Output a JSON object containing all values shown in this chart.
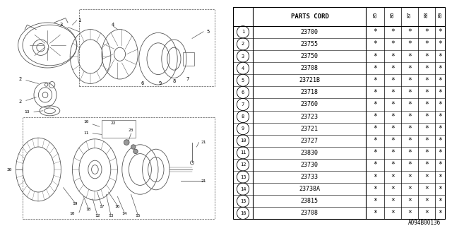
{
  "bg_color": "#ffffff",
  "col_header": "PARTS CORD",
  "col_years": [
    "85",
    "86",
    "87",
    "88",
    "89"
  ],
  "parts": [
    {
      "num": 1,
      "code": "23700"
    },
    {
      "num": 2,
      "code": "23755"
    },
    {
      "num": 3,
      "code": "23750"
    },
    {
      "num": 4,
      "code": "23708"
    },
    {
      "num": 5,
      "code": "23721B"
    },
    {
      "num": 6,
      "code": "23718"
    },
    {
      "num": 7,
      "code": "23760"
    },
    {
      "num": 8,
      "code": "23723"
    },
    {
      "num": 9,
      "code": "23721"
    },
    {
      "num": 10,
      "code": "23727"
    },
    {
      "num": 11,
      "code": "23830"
    },
    {
      "num": 12,
      "code": "23730"
    },
    {
      "num": 13,
      "code": "23733"
    },
    {
      "num": 14,
      "code": "23738A"
    },
    {
      "num": 15,
      "code": "23815"
    },
    {
      "num": 16,
      "code": "23708"
    }
  ],
  "footer_code": "A094B00136",
  "draw_color": "#555555",
  "line_width": 0.6
}
